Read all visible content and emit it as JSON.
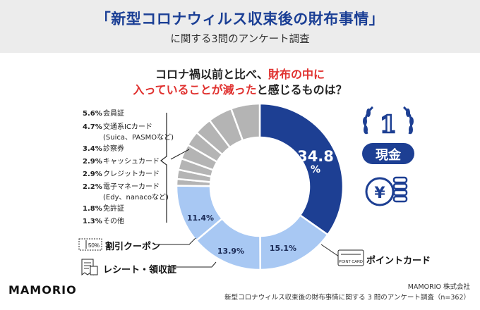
{
  "header": {
    "title": "「新型コロナウィルス収束後の財布事情」",
    "subtitle": "に関する3問のアンケート調査"
  },
  "question": {
    "line1_a": "コロナ禍以前と比べ、",
    "line1_b": "財布の中に",
    "line2_a": "入っていることが減った",
    "line2_b": "と感じるものは？"
  },
  "chart_data": {
    "type": "pie",
    "variant": "donut",
    "slices": [
      {
        "label": "現金",
        "value": 34.8
      },
      {
        "label": "ポイントカード",
        "value": 15.1
      },
      {
        "label": "レシート・領収証",
        "value": 13.9
      },
      {
        "label": "割引クーポン",
        "value": 11.4
      },
      {
        "label": "その他",
        "value": 1.3
      },
      {
        "label": "免許証",
        "value": 1.8
      },
      {
        "label": "電子マネーカード(Edy、nanacoなど)",
        "value": 2.2
      },
      {
        "label": "クレジットカード",
        "value": 2.9
      },
      {
        "label": "キャッシュカード",
        "value": 2.9
      },
      {
        "label": "診察券",
        "value": 3.4
      },
      {
        "label": "交通系ICカード(Suica、PASMOなど)",
        "value": 4.7
      },
      {
        "label": "会員証",
        "value": 5.6
      }
    ],
    "colors": {
      "top": "#1d3f93",
      "major": "#a8c8f3",
      "minor": "#b4b4b4",
      "gap": "#ffffff"
    }
  },
  "labels": {
    "cash_pct": "34.8",
    "cash_unit": "%",
    "cash_name": "現金",
    "point_pct": "15.1%",
    "point_name": "ポイントカード",
    "point_card_text": "POINT CARD",
    "receipt_pct": "13.9%",
    "receipt_name": "レシート・領収証",
    "coupon_pct": "11.4%",
    "coupon_name": "割引クーポン",
    "coupon_icon_text": "50%",
    "rank_badge": "1"
  },
  "small_items": [
    {
      "pct": "5.6%",
      "name": "会員証",
      "sub": ""
    },
    {
      "pct": "4.7%",
      "name": "交通系ICカード",
      "sub": "(Suica、PASMOなど)"
    },
    {
      "pct": "3.4%",
      "name": "診察券",
      "sub": ""
    },
    {
      "pct": "2.9%",
      "name": "キャッシュカード",
      "sub": ""
    },
    {
      "pct": "2.9%",
      "name": "クレジットカード",
      "sub": ""
    },
    {
      "pct": "2.2%",
      "name": "電子マネーカード",
      "sub": "(Edy、nanacoなど)"
    },
    {
      "pct": "1.8%",
      "name": "免許証",
      "sub": ""
    },
    {
      "pct": "1.3%",
      "name": "その他",
      "sub": ""
    }
  ],
  "footer": {
    "brand": "MAMORIO",
    "company": "MAMORIO 株式会社",
    "source": "新型コロナウィルス収束後の財布事情に関する 3 問のアンケート調査（n=362）"
  }
}
